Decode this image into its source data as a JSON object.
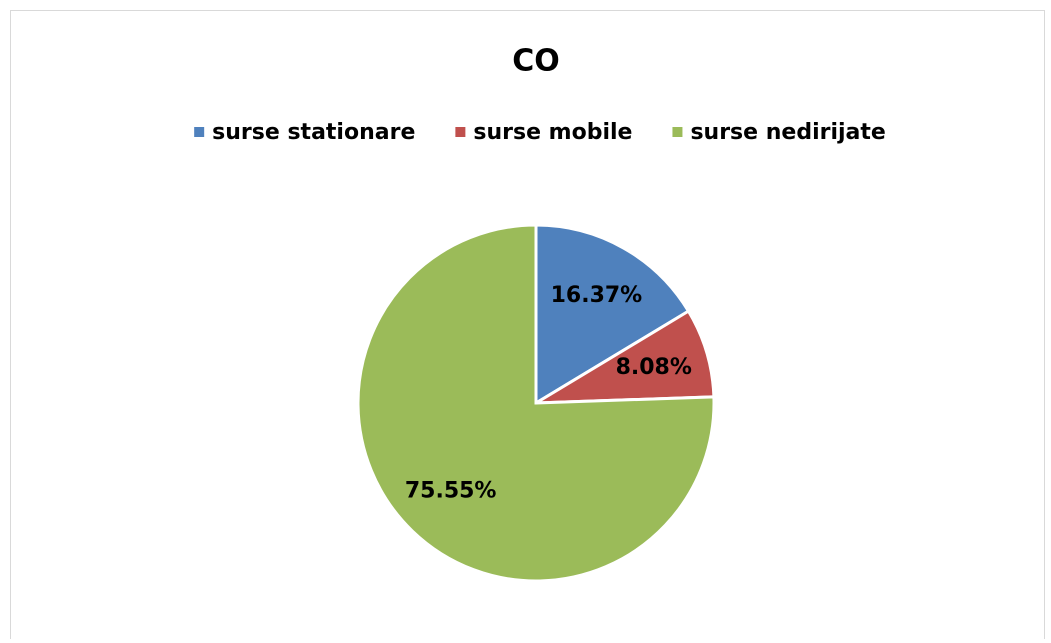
{
  "chart_data": {
    "type": "pie",
    "title": "CO",
    "categories": [
      "surse stationare",
      "surse mobile",
      "surse nedirijate"
    ],
    "values": [
      16.37,
      8.08,
      75.55
    ],
    "value_labels": [
      "16.37%",
      "8.08%",
      "75.55%"
    ],
    "colors": [
      "#4f81bd",
      "#c0504d",
      "#9bbb59"
    ],
    "legend": "top"
  }
}
